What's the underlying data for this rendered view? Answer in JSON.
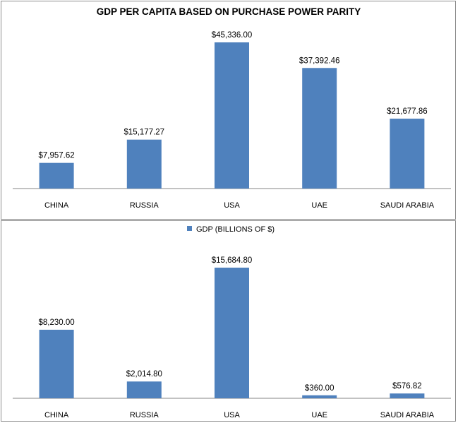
{
  "chart_data": [
    {
      "type": "bar",
      "title": "GDP PER CAPITA BASED ON PURCHASE POWER PARITY",
      "categories": [
        "CHINA",
        "RUSSIA",
        "USA",
        "UAE",
        "SAUDI ARABIA"
      ],
      "values": [
        7957.62,
        15177.27,
        45336.0,
        37392.46,
        21677.86
      ],
      "data_labels": [
        "$7,957.62",
        "$15,177.27",
        "$45,336.00",
        "$37,392.46",
        "$21,677.86"
      ],
      "color": "#4f81bd",
      "grid": false,
      "legend": null
    },
    {
      "type": "bar",
      "title": "",
      "categories": [
        "CHINA",
        "RUSSIA",
        "USA",
        "UAE",
        "SAUDI ARABIA"
      ],
      "series": [
        {
          "name": "GDP (BILLIONS OF $)",
          "values": [
            8230.0,
            2014.8,
            15684.8,
            360.0,
            576.82
          ]
        }
      ],
      "data_labels": [
        "$8,230.00",
        "$2,014.80",
        "$15,684.80",
        "$360.00",
        "$576.82"
      ],
      "color": "#4f81bd",
      "grid": false,
      "legend": "top-center"
    }
  ]
}
